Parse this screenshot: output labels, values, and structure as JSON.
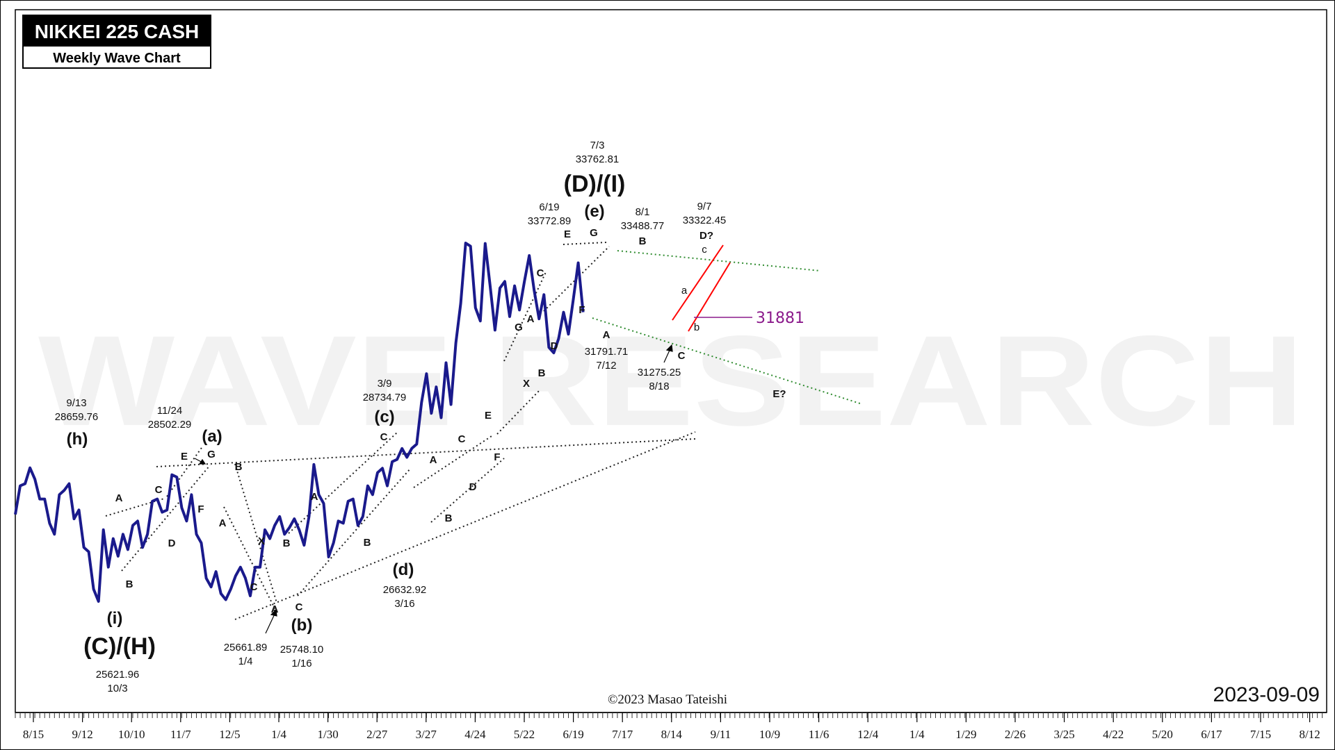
{
  "header": {
    "title": "NIKKEI 225 CASH",
    "subtitle": "Weekly Wave Chart"
  },
  "watermark": "WAVE RESEARCH",
  "copyright": "©2023 Masao Tateishi",
  "date_stamp": "2023-09-09",
  "key_level": {
    "label": "31881",
    "value": 31881,
    "color": "#8b1a8b"
  },
  "colors": {
    "price": "#1a1a8c",
    "channel": "#ff0000",
    "guide": "#2e8b2e",
    "trend": "#222222"
  },
  "chart_data": {
    "type": "line",
    "x_tick_labels": [
      "8/15",
      "9/12",
      "10/10",
      "11/7",
      "12/5",
      "1/4",
      "1/30",
      "2/27",
      "3/27",
      "4/24",
      "5/22",
      "6/19",
      "7/17",
      "8/14",
      "9/11",
      "10/9",
      "11/6",
      "12/4",
      "1/4",
      "1/29",
      "2/26",
      "3/25",
      "4/22",
      "5/20",
      "6/17",
      "7/15",
      "8/12"
    ],
    "week_index_start": 0,
    "series": [
      {
        "values": [
          27600,
          28250,
          28300,
          28659.76,
          28400,
          27950,
          27950,
          27400,
          27150,
          28050,
          28150,
          28300,
          27500,
          27700,
          26850,
          26750,
          25900,
          25621.96,
          27250,
          26400,
          27050,
          26650,
          27150,
          26800,
          27350,
          27450,
          26850,
          27150,
          27900,
          27950,
          27650,
          27700,
          28502.29,
          28450,
          27750,
          27450,
          28050,
          27150,
          26950,
          26150,
          25950,
          26300,
          25800,
          25661.89,
          25900,
          26200,
          26400,
          26150,
          25748.1,
          26400,
          26400,
          27250,
          27050,
          27350,
          27550,
          27150,
          27300,
          27500,
          27250,
          26900,
          27550,
          28734.79,
          28050,
          27850,
          26632.92,
          26950,
          27450,
          27400,
          27900,
          27950,
          27350,
          27550,
          28250,
          28050,
          28550,
          28650,
          28250,
          28800,
          28850,
          29100,
          28900,
          29100,
          29200,
          30150,
          30800,
          29900,
          30500,
          29800,
          31050,
          30100,
          31500,
          32400,
          33772.89,
          33700,
          32300,
          32000,
          33762.81,
          32800,
          31791.71,
          32750,
          32900,
          32100,
          32800,
          32250,
          32900,
          33488.77,
          32700,
          32050,
          32600,
          31400,
          31275.25,
          31600,
          32200,
          31700,
          32500,
          33322.45,
          32200
        ]
      }
    ],
    "annotations": {
      "degree_labels": [
        "(C)/(H)",
        "(D)/(I)",
        "(h)",
        "(i)",
        "(a)",
        "(b)",
        "(c)",
        "(d)",
        "(e)"
      ],
      "wave_labels": [
        "A",
        "B",
        "C",
        "D",
        "E",
        "F",
        "G",
        "X",
        "a",
        "b",
        "c",
        "D?",
        "E?"
      ],
      "price_notes": [
        {
          "date": "9/13",
          "price": "28659.76"
        },
        {
          "date": "10/3",
          "price": "25621.96"
        },
        {
          "date": "11/24",
          "price": "28502.29"
        },
        {
          "date": "1/4",
          "price": "25661.89"
        },
        {
          "date": "1/16",
          "price": "25748.10"
        },
        {
          "date": "3/9",
          "price": "28734.79"
        },
        {
          "date": "3/16",
          "price": "26632.92"
        },
        {
          "date": "6/19",
          "price": "33772.89"
        },
        {
          "date": "7/3",
          "price": "33762.81"
        },
        {
          "date": "7/12",
          "price": "31791.71"
        },
        {
          "date": "8/1",
          "price": "33488.77"
        },
        {
          "date": "8/18",
          "price": "31275.25"
        },
        {
          "date": "9/7",
          "price": "33322.45"
        }
      ]
    }
  }
}
